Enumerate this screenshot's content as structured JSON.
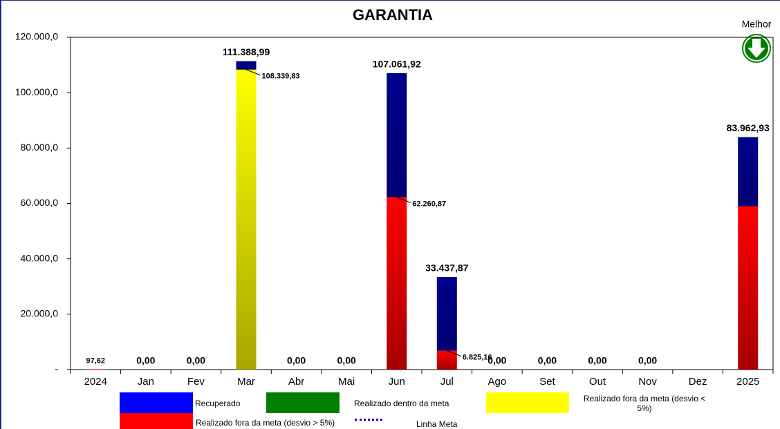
{
  "chart_data": {
    "type": "stacked_bar",
    "title": "GARANTIA",
    "annotation": "Melhor",
    "categories": [
      "2024",
      "Jan",
      "Fev",
      "Mar",
      "Abr",
      "Mai",
      "Jun",
      "Jul",
      "Ago",
      "Set",
      "Out",
      "Nov",
      "Dez",
      "2025"
    ],
    "series": [
      {
        "name": "Recuperado",
        "color": "#0000ff",
        "values": [
          null,
          null,
          null,
          3049.16,
          null,
          null,
          44801.05,
          26612.71,
          null,
          null,
          null,
          null,
          null,
          24962.93
        ]
      },
      {
        "name": "Realizado dentro da meta",
        "color": "#008000",
        "values": [
          null,
          null,
          null,
          null,
          null,
          null,
          null,
          null,
          null,
          null,
          null,
          null,
          null,
          null
        ]
      },
      {
        "name": "Realizado fora da meta (desvio < 5%)",
        "color": "#ffff00",
        "values": [
          null,
          null,
          null,
          108339.83,
          null,
          null,
          null,
          null,
          null,
          null,
          null,
          null,
          null,
          null
        ],
        "value_labels": [
          null,
          null,
          null,
          "108.339,83",
          null,
          null,
          null,
          null,
          null,
          null,
          null,
          null,
          null,
          null
        ]
      },
      {
        "name": "Realizado fora da meta (desvio > 5%)",
        "color": "#ff0000",
        "values": [
          97.62,
          null,
          null,
          null,
          null,
          null,
          62260.87,
          6825.16,
          null,
          null,
          null,
          null,
          null,
          59000
        ],
        "value_labels": [
          null,
          null,
          null,
          null,
          null,
          null,
          "62.260,87",
          "6.825,16",
          null,
          null,
          null,
          null,
          null,
          null
        ]
      },
      {
        "name": "Linha Meta",
        "color": "#0000cc",
        "style": "dotted",
        "values": [
          null,
          null,
          null,
          null,
          null,
          null,
          null,
          null,
          null,
          null,
          null,
          null,
          null,
          null
        ]
      }
    ],
    "totals": [
      97.62,
      0,
      0,
      111388.99,
      0,
      0,
      107061.92,
      33437.87,
      0,
      0,
      0,
      0,
      null,
      83962.93
    ],
    "total_labels": [
      "97,62",
      "0,00",
      "0,00",
      "111.388,99",
      "0,00",
      "0,00",
      "107.061,92",
      "33.437,87",
      "0,00",
      "0,00",
      "0,00",
      "0,00",
      null,
      "83.962,93"
    ],
    "ylim": [
      0,
      120000
    ],
    "yticks": [
      {
        "value": 0,
        "label": "-"
      },
      {
        "value": 20000,
        "label": "20.000,0"
      },
      {
        "value": 40000,
        "label": "40.000,0"
      },
      {
        "value": 60000,
        "label": "60.000,0"
      },
      {
        "value": 80000,
        "label": "80.000,0"
      },
      {
        "value": 100000,
        "label": "100.000,0"
      },
      {
        "value": 120000,
        "label": "120.000,0"
      }
    ],
    "grid": false
  }
}
